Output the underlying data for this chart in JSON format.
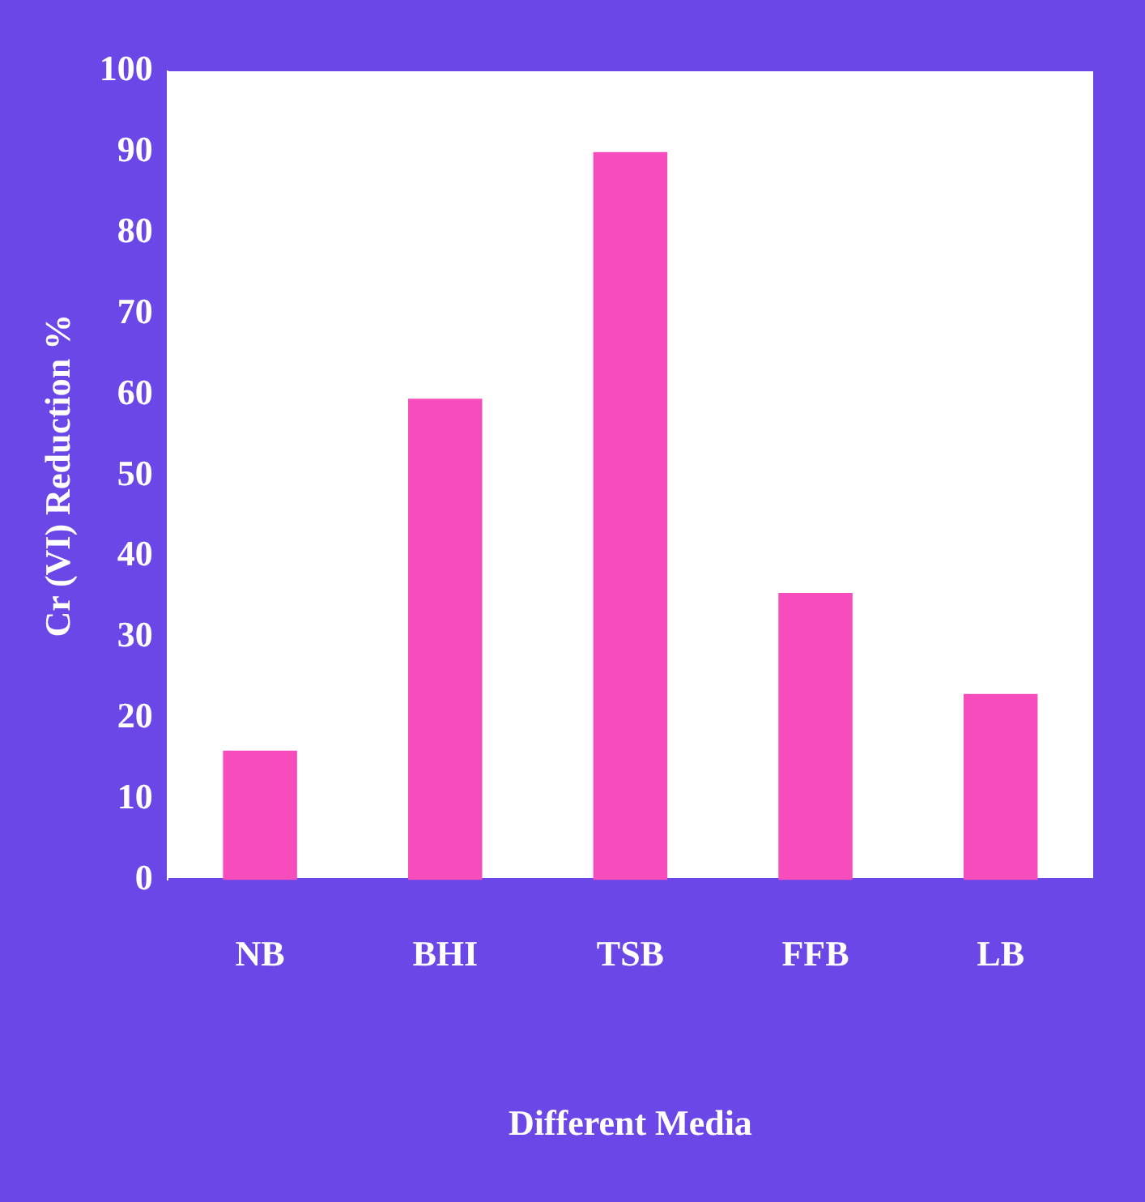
{
  "chart_data": {
    "type": "bar",
    "xlabel": "Different Media",
    "ylabel": "Cr (VI) Reduction %",
    "categories": [
      "NB",
      "BHI",
      "TSB",
      "FFB",
      "LB"
    ],
    "values": [
      16,
      59.5,
      90,
      35.5,
      23
    ],
    "color": "#f74cbb",
    "ylim": [
      0,
      100
    ],
    "yticks": [
      0,
      10,
      20,
      30,
      40,
      50,
      60,
      70,
      80,
      90,
      100
    ],
    "grid": false,
    "legend": false
  }
}
